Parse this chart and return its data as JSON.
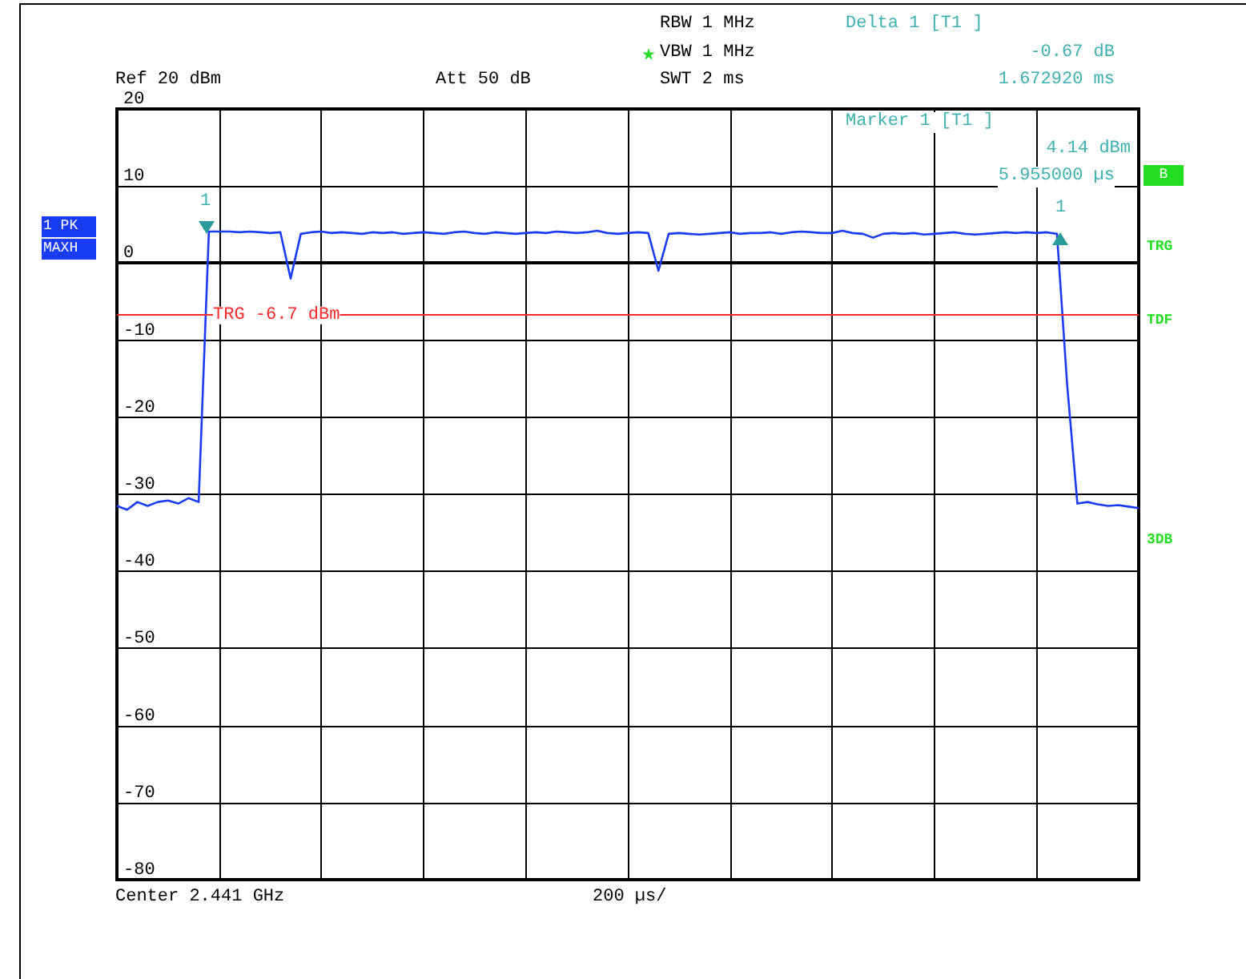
{
  "chart_data": {
    "type": "line",
    "categories": [
      null,
      null,
      null,
      null,
      null,
      null,
      null,
      null,
      null,
      null,
      null,
      null,
      null,
      null,
      null,
      null,
      null,
      null,
      null,
      null,
      null,
      null,
      null,
      null,
      null,
      null,
      null,
      null,
      null,
      null,
      null,
      null,
      null,
      null,
      null,
      null,
      null,
      null,
      null,
      null,
      null,
      null,
      null,
      null,
      null,
      null,
      null,
      null,
      null,
      null,
      null,
      null,
      null,
      null,
      null,
      null,
      null,
      null,
      null,
      null,
      null,
      null,
      null,
      null,
      null,
      null,
      null,
      null,
      null,
      null,
      null,
      null,
      null,
      null,
      null,
      null,
      null,
      null,
      null,
      null,
      null,
      null,
      null,
      null,
      null,
      null,
      null,
      null,
      null,
      null,
      null,
      null,
      null,
      null,
      null,
      null,
      null,
      null,
      null,
      null,
      null
    ],
    "series": [
      {
        "color": "#1a3cf0",
        "values": [
          -31.5,
          -32,
          -31,
          -31.5,
          -31,
          -30.8,
          -31.2,
          -30.5,
          -31,
          4.1,
          4.1,
          4.1,
          4.0,
          4.1,
          4.0,
          3.9,
          4.0,
          -2,
          3.8,
          4.0,
          4.1,
          3.9,
          4.0,
          3.9,
          3.8,
          4.0,
          3.9,
          4.0,
          3.8,
          3.9,
          4.0,
          3.9,
          3.8,
          4.0,
          4.1,
          3.9,
          3.8,
          4.0,
          3.9,
          3.8,
          3.9,
          4.0,
          3.9,
          4.1,
          4.0,
          3.9,
          4.0,
          4.2,
          3.9,
          3.8,
          3.9,
          4.0,
          3.9,
          -1,
          3.8,
          3.9,
          3.8,
          3.7,
          3.8,
          3.9,
          4.0,
          3.8,
          3.9,
          3.9,
          4.0,
          3.8,
          4.0,
          4.1,
          4.0,
          3.9,
          3.9,
          4.2,
          3.9,
          3.8,
          3.3,
          3.8,
          3.9,
          3.8,
          3.9,
          3.7,
          3.8,
          3.9,
          4.0,
          3.8,
          3.7,
          3.8,
          3.9,
          4.0,
          3.9,
          4.0,
          3.9,
          4.0,
          3.8,
          -15.8,
          -31.2,
          -31,
          -31.3,
          -31.5,
          -31.4,
          -31.6,
          -31.8
        ]
      }
    ],
    "ylim": [
      -80,
      20
    ],
    "yticks": [
      20,
      10,
      0,
      -10,
      -20,
      -30,
      -40,
      -50,
      -60,
      -70,
      -80
    ],
    "grid": true,
    "tick_labels": "y",
    "ref_lines": [
      {
        "axis": "y",
        "value": -6.7,
        "label": "TRG -6.7 dBm",
        "color": "#ff2a2a"
      }
    ],
    "annotations": [
      "Ref 20 dBm",
      "Att 50 dB",
      "RBW 1 MHz",
      "VBW 1 MHz",
      "SWT 2 ms",
      "Delta 1 [T1 ]",
      "-0.67 dB",
      "1.672920 ms",
      "Marker 1 [T1 ]",
      "4.14 dBm",
      "5.955000 µs",
      "Center 2.441 GHz",
      "200 µs/",
      "1 PK",
      "MAXH",
      "B",
      "TRG",
      "TDF",
      "3DB",
      "1",
      "1"
    ]
  }
}
